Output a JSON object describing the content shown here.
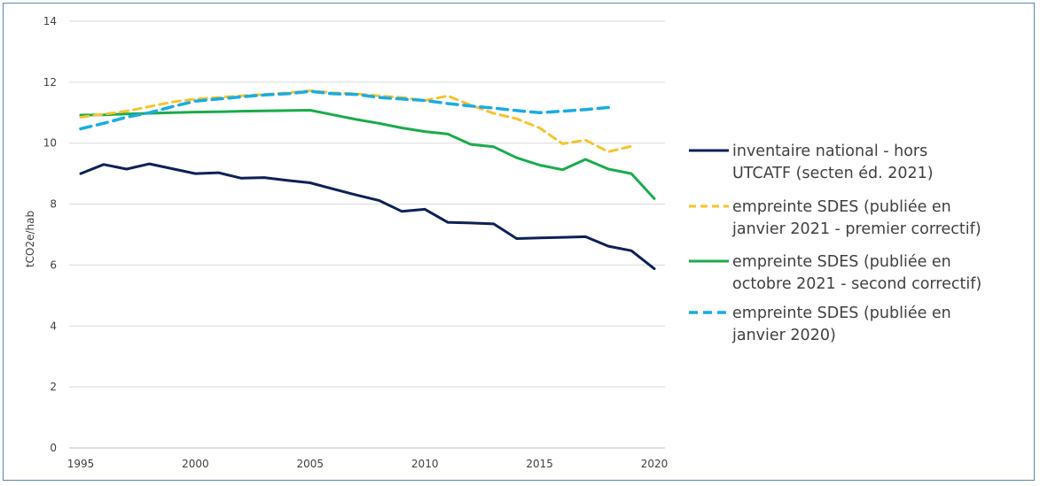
{
  "chart_data": {
    "type": "line",
    "xlabel": "",
    "ylabel": "tCO2e/hab",
    "ylim": [
      0,
      14
    ],
    "xlim": [
      1995,
      2020
    ],
    "yticks": [
      "0",
      "2",
      "4",
      "6",
      "8",
      "10",
      "12",
      "14"
    ],
    "xticks": [
      "1995",
      "2000",
      "2005",
      "2010",
      "2015",
      "2020"
    ],
    "grid": "horizontal",
    "legend_position": "right",
    "series": [
      {
        "name_lines": [
          "inventaire national - hors",
          "UTCATF (secten éd. 2021)"
        ],
        "color": "#0d2157",
        "dash": "solid",
        "x": [
          1995,
          1996,
          1997,
          1998,
          1999,
          2000,
          2001,
          2002,
          2003,
          2004,
          2005,
          2006,
          2007,
          2008,
          2009,
          2010,
          2011,
          2012,
          2013,
          2014,
          2015,
          2016,
          2017,
          2018,
          2019,
          2020
        ],
        "values": [
          9.0,
          9.3,
          9.15,
          9.32,
          9.16,
          9.0,
          9.03,
          8.85,
          8.87,
          8.78,
          8.7,
          8.5,
          8.3,
          8.12,
          7.76,
          7.83,
          7.4,
          7.38,
          7.35,
          6.87,
          6.89,
          6.91,
          6.93,
          6.62,
          6.47,
          5.88
        ]
      },
      {
        "name_lines": [
          "empreinte SDES (publiée en",
          "janvier 2021 - premier correctif)"
        ],
        "color": "#f5c42c",
        "dash": "dashed",
        "x": [
          1995,
          1996,
          1997,
          1998,
          1999,
          2000,
          2001,
          2002,
          2003,
          2004,
          2005,
          2006,
          2007,
          2008,
          2009,
          2010,
          2011,
          2012,
          2013,
          2014,
          2015,
          2016,
          2017,
          2018,
          2019
        ],
        "values": [
          10.85,
          10.95,
          11.05,
          11.2,
          11.35,
          11.45,
          11.5,
          11.55,
          11.6,
          11.65,
          11.72,
          11.65,
          11.62,
          11.55,
          11.5,
          11.4,
          11.55,
          11.25,
          10.98,
          10.8,
          10.5,
          9.98,
          10.1,
          9.72,
          9.9
        ]
      },
      {
        "name_lines": [
          "empreinte SDES (publiée en",
          "octobre 2021 - second correctif)"
        ],
        "color": "#1aab4b",
        "dash": "solid",
        "x": [
          1995,
          1996,
          1997,
          1998,
          1999,
          2000,
          2001,
          2002,
          2003,
          2004,
          2005,
          2006,
          2007,
          2008,
          2009,
          2010,
          2011,
          2012,
          2013,
          2014,
          2015,
          2016,
          2017,
          2018,
          2019,
          2020
        ],
        "values": [
          10.92,
          10.93,
          10.96,
          10.98,
          11.0,
          11.02,
          11.03,
          11.05,
          11.06,
          11.07,
          11.08,
          10.93,
          10.78,
          10.65,
          10.5,
          10.38,
          10.3,
          9.96,
          9.88,
          9.52,
          9.28,
          9.13,
          9.47,
          9.15,
          9.0,
          8.18
        ]
      },
      {
        "name_lines": [
          "empreinte SDES (publiée en",
          "janvier 2020)"
        ],
        "color": "#1aace3",
        "dash": "dashed",
        "x": [
          1995,
          1996,
          1997,
          1998,
          1999,
          2000,
          2001,
          2002,
          2003,
          2004,
          2005,
          2006,
          2007,
          2008,
          2009,
          2010,
          2011,
          2012,
          2013,
          2014,
          2015,
          2016,
          2017,
          2018
        ],
        "values": [
          10.47,
          10.65,
          10.85,
          11.0,
          11.2,
          11.38,
          11.45,
          11.52,
          11.58,
          11.62,
          11.7,
          11.62,
          11.6,
          11.5,
          11.45,
          11.4,
          11.3,
          11.22,
          11.15,
          11.07,
          11.0,
          11.05,
          11.1,
          11.17
        ]
      }
    ]
  }
}
